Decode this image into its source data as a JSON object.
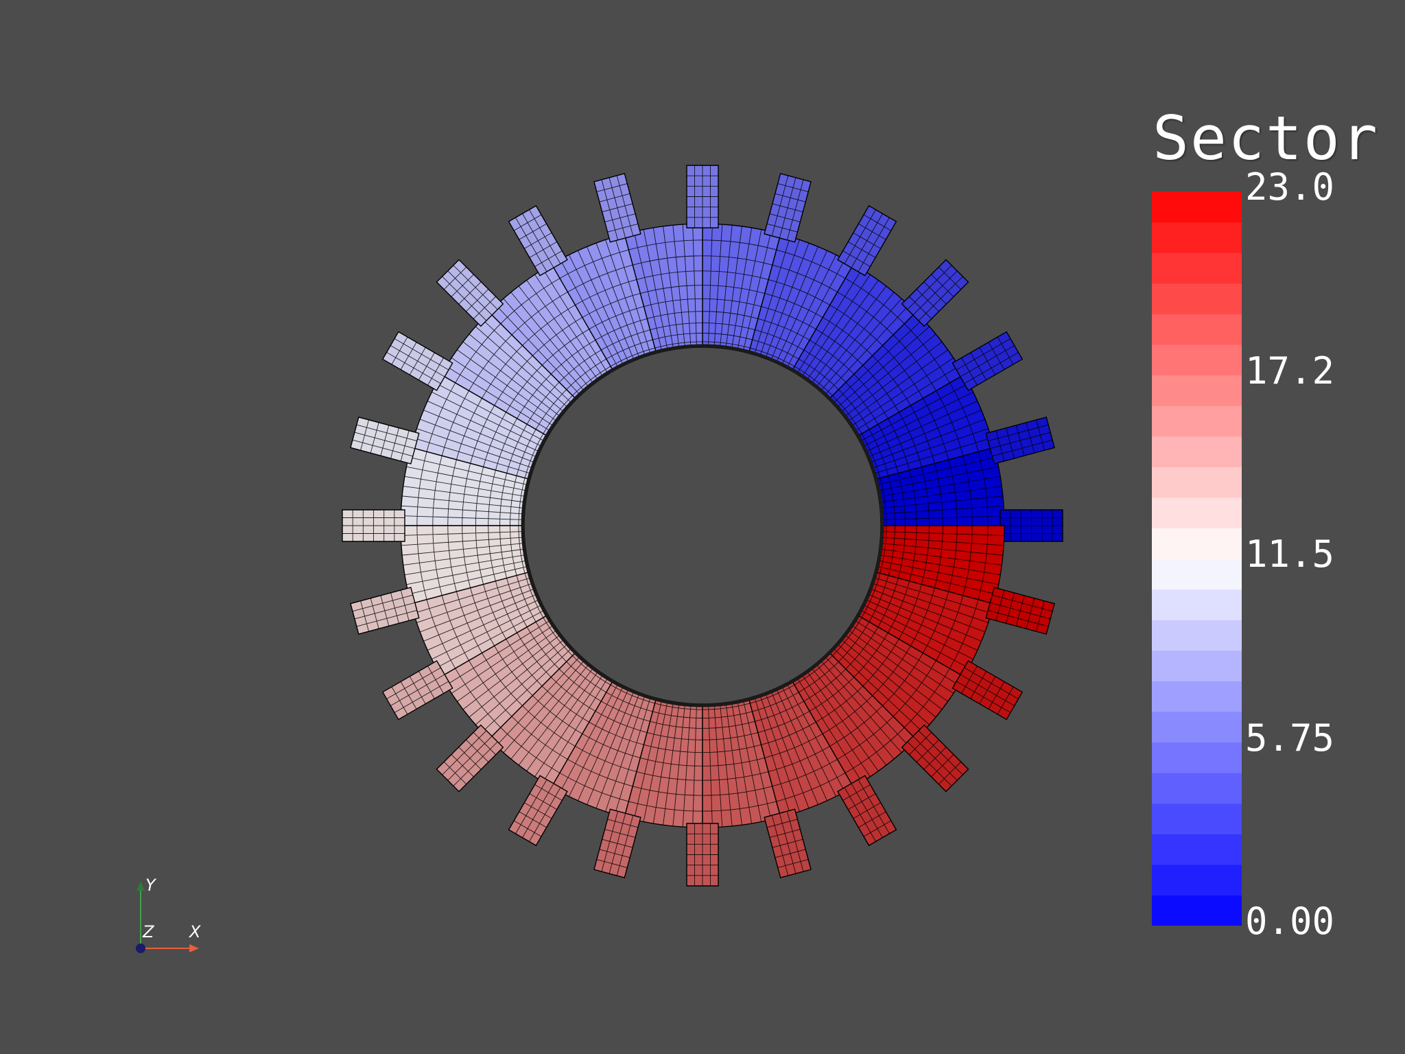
{
  "scalar_bar": {
    "title": "Sector",
    "tick_labels": [
      "23.0",
      "17.2",
      "11.5",
      "5.75",
      "0.00"
    ],
    "range": [
      0,
      23
    ],
    "n_colors": 24,
    "colormap": "coolwarm-like",
    "low_color": "#0000ff",
    "mid_color": "#ffffff",
    "high_color": "#ff0000"
  },
  "mesh": {
    "shape": "gear-shaped annulus",
    "n_sectors": 24,
    "n_teeth": 24,
    "sector_value_by_angle": "0 at +x axis increasing counterclockwise to 23",
    "grid_line_color": "#000000",
    "background_color": "#4c4c4c"
  },
  "axes": {
    "x_label": "X",
    "y_label": "Y",
    "z_label": "Z",
    "x_color": "#e8603c",
    "y_color": "#3ea24a",
    "z_color": "#1a1a66"
  }
}
